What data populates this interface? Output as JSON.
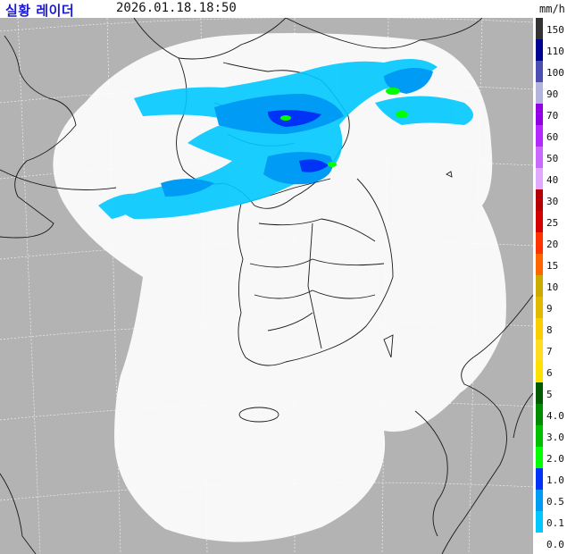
{
  "header": {
    "title": "실황 레이더",
    "datetime": "2026.01.18.18:50",
    "unit": "mm/h"
  },
  "legend": {
    "items": [
      {
        "label": "150",
        "color": "#333333"
      },
      {
        "label": "110",
        "color": "#000390"
      },
      {
        "label": "100",
        "color": "#4c4eb1"
      },
      {
        "label": "90",
        "color": "#b3b4de"
      },
      {
        "label": "70",
        "color": "#9300e4"
      },
      {
        "label": "60",
        "color": "#b329ff"
      },
      {
        "label": "50",
        "color": "#c969ff"
      },
      {
        "label": "40",
        "color": "#e0a9ff"
      },
      {
        "label": "30",
        "color": "#b40000"
      },
      {
        "label": "25",
        "color": "#d20000"
      },
      {
        "label": "20",
        "color": "#ff3200"
      },
      {
        "label": "15",
        "color": "#ff6600"
      },
      {
        "label": "10",
        "color": "#ccaa00"
      },
      {
        "label": "9",
        "color": "#e0b900"
      },
      {
        "label": "8",
        "color": "#f9cd00"
      },
      {
        "label": "7",
        "color": "#ffdc1f"
      },
      {
        "label": "6",
        "color": "#ffe100"
      },
      {
        "label": "5",
        "color": "#005a00"
      },
      {
        "label": "4.0",
        "color": "#008c00"
      },
      {
        "label": "3.0",
        "color": "#00be00"
      },
      {
        "label": "2.0",
        "color": "#00ff00"
      },
      {
        "label": "1.0",
        "color": "#0033f5"
      },
      {
        "label": "0.5",
        "color": "#009bf5"
      },
      {
        "label": "0.1",
        "color": "#00c8ff"
      },
      {
        "label": "0.0",
        "color": "#ffffff"
      }
    ]
  },
  "colors": {
    "outside_coverage": "#b3b3b3",
    "coverage": "#f8f8f8",
    "boundary": "#1a1a1a",
    "grid": "#ffffff"
  }
}
